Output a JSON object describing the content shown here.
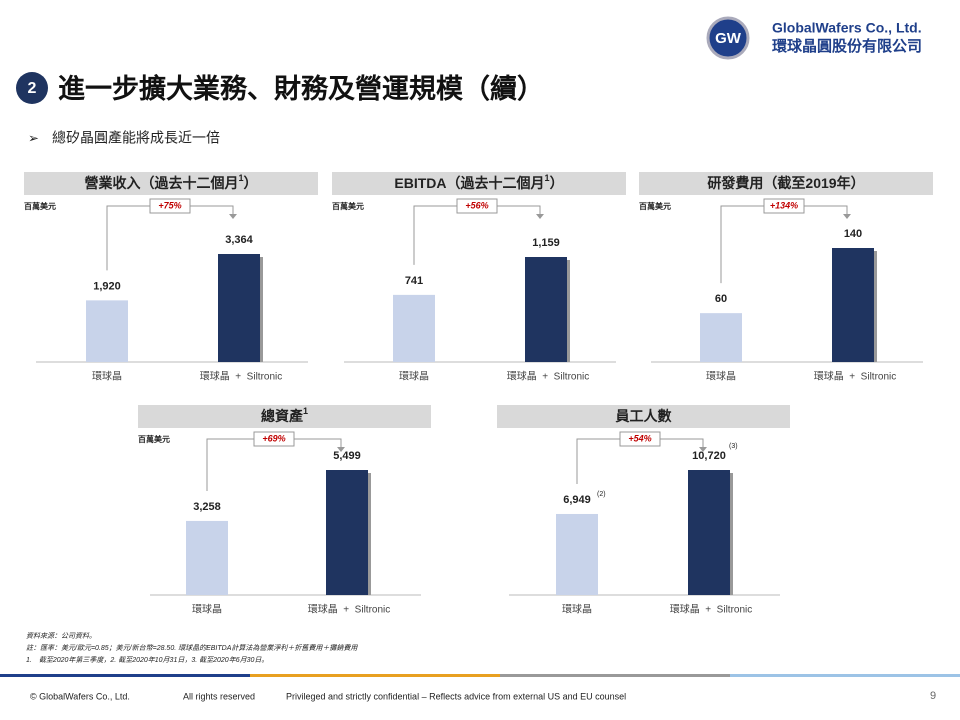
{
  "header": {
    "logo_mark": "GW",
    "company_en": "GlobalWafers Co., Ltd.",
    "company_zh": "環球晶圓股份有限公司",
    "section": "2",
    "title": "進一步擴大業務、財務及營運規模（續）",
    "bullet": "總矽晶圓產能將成長近一倍"
  },
  "chart_data": [
    {
      "type": "bar",
      "title": "營業收入（過去十二個月",
      "title_sup": "1",
      "title_end": "）",
      "unit": "百萬美元",
      "categories": [
        "環球晶",
        "環球晶  +  Siltronic"
      ],
      "values": [
        1920,
        3364
      ],
      "value_labels": [
        "1,920",
        "3,364"
      ],
      "colors": [
        "#c8d3ea",
        "#1f3460"
      ],
      "growth": "+75%"
    },
    {
      "type": "bar",
      "title": "EBITDA（過去十二個月",
      "title_sup": "1",
      "title_end": "）",
      "unit": "百萬美元",
      "categories": [
        "環球晶",
        "環球晶  +  Siltronic"
      ],
      "values": [
        741,
        1159
      ],
      "value_labels": [
        "741",
        "1,159"
      ],
      "colors": [
        "#c8d3ea",
        "#1f3460"
      ],
      "growth": "+56%"
    },
    {
      "type": "bar",
      "title": "研發費用（截至2019年）",
      "unit": "百萬美元",
      "categories": [
        "環球晶",
        "環球晶  +  Siltronic"
      ],
      "values": [
        60,
        140
      ],
      "colors": [
        "#c8d3ea",
        "#1f3460"
      ],
      "growth": "+134%"
    },
    {
      "type": "bar",
      "title": "總資產",
      "title_sup": "1",
      "unit": "百萬美元",
      "categories": [
        "環球晶",
        "環球晶  +  Siltronic"
      ],
      "values": [
        3258,
        5499
      ],
      "value_labels": [
        "3,258",
        "5,499"
      ],
      "colors": [
        "#c8d3ea",
        "#1f3460"
      ],
      "growth": "+69%"
    },
    {
      "type": "bar",
      "title": "員工人數",
      "categories": [
        "環球晶",
        "環球晶  +  Siltronic"
      ],
      "values": [
        6949,
        10720
      ],
      "value_labels": [
        "6,949",
        "10,720"
      ],
      "value_notes": [
        "(2)",
        "(3)"
      ],
      "colors": [
        "#c8d3ea",
        "#1f3460"
      ],
      "growth": "+54%"
    }
  ],
  "notes": [
    "資料來源：公司資料。",
    "註：匯率：美元/歐元=0.85；美元/新台幣=28.50. 環球晶的EBITDA計算法為營業淨利＋折舊費用＋攤銷費用",
    "1.　截至2020年第三季度，2. 截至2020年10月31日，3. 截至2020年6月30日。"
  ],
  "footer": {
    "copyright": "© GlobalWafers Co., Ltd.",
    "rights": "All rights reserved",
    "confidential": "Privileged and strictly confidential – Reflects advice from external US and EU counsel",
    "page": "9"
  }
}
